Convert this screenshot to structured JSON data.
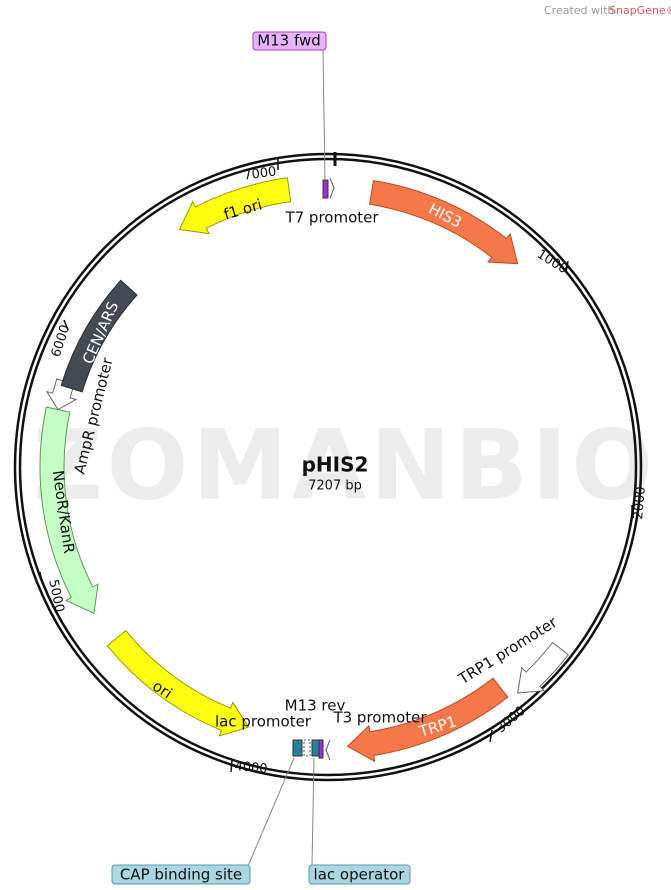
{
  "credit": {
    "prefix": "Created with",
    "brand": "SnapGene®"
  },
  "watermark": "ZOMANBIO",
  "plasmid": {
    "name": "pHIS2",
    "length": "7207 bp"
  },
  "ticks": [
    "1000",
    "2000",
    "3000",
    "4000",
    "5000",
    "6000",
    "7000"
  ],
  "features": [
    {
      "label": "HIS3"
    },
    {
      "label": "TRP1"
    },
    {
      "label": "ori"
    },
    {
      "label": "NeoR/KanR"
    },
    {
      "label": "CEN/ARS"
    },
    {
      "label": "f1 ori"
    }
  ],
  "annotations": [
    "T7 promoter",
    "TRP1 promoter",
    "T3 promoter",
    "lac promoter",
    "M13 rev",
    "AmpR promoter"
  ],
  "callouts": [
    "M13 fwd",
    "CAP binding site",
    "lac operator"
  ]
}
